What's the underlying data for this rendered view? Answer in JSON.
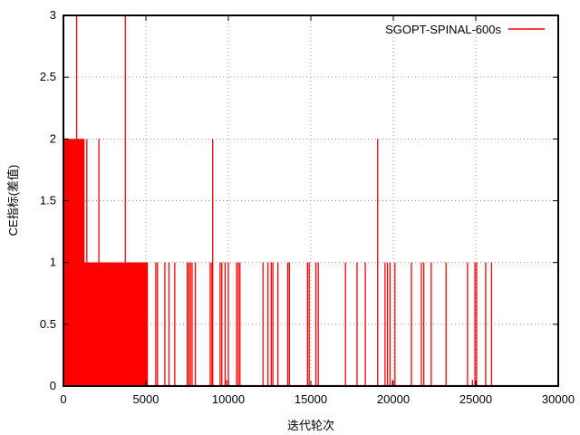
{
  "chart_data": {
    "type": "line",
    "title": "",
    "xlabel": "迭代轮次",
    "ylabel": "CE指标(差值)",
    "xlim": [
      0,
      30000
    ],
    "ylim": [
      0,
      3
    ],
    "xticks": [
      "0",
      "5000",
      "10000",
      "15000",
      "20000",
      "25000",
      "30000"
    ],
    "yticks": [
      "0",
      "0.5",
      "1",
      "1.5",
      "2",
      "2.5",
      "3"
    ],
    "grid": true,
    "legend_position": "top-right",
    "series": [
      {
        "name": "SGOPT-SPINAL-600s",
        "color": "#ff0000",
        "dense_ranges": [
          {
            "x_start": 0,
            "x_end": 650,
            "value": 2
          },
          {
            "x_start": 650,
            "x_end": 1250,
            "value": 2
          },
          {
            "x_start": 1250,
            "x_end": 2600,
            "value": 1
          },
          {
            "x_start": 2600,
            "x_end": 5100,
            "value": 1
          }
        ],
        "spikes": [
          {
            "x": 800,
            "y": 3
          },
          {
            "x": 3750,
            "y": 3
          },
          {
            "x": 980,
            "y": 2
          },
          {
            "x": 1100,
            "y": 2
          },
          {
            "x": 1420,
            "y": 2
          },
          {
            "x": 2150,
            "y": 2
          },
          {
            "x": 9050,
            "y": 2
          },
          {
            "x": 19050,
            "y": 2
          },
          {
            "x": 5600,
            "y": 1
          },
          {
            "x": 5700,
            "y": 1
          },
          {
            "x": 6150,
            "y": 1
          },
          {
            "x": 6400,
            "y": 1
          },
          {
            "x": 6750,
            "y": 1
          },
          {
            "x": 7500,
            "y": 1
          },
          {
            "x": 7600,
            "y": 1
          },
          {
            "x": 7700,
            "y": 1
          },
          {
            "x": 7800,
            "y": 1
          },
          {
            "x": 8000,
            "y": 1
          },
          {
            "x": 8900,
            "y": 1
          },
          {
            "x": 9000,
            "y": 1
          },
          {
            "x": 9500,
            "y": 1
          },
          {
            "x": 9600,
            "y": 1
          },
          {
            "x": 9800,
            "y": 1
          },
          {
            "x": 10000,
            "y": 1
          },
          {
            "x": 10500,
            "y": 1
          },
          {
            "x": 10600,
            "y": 1
          },
          {
            "x": 10700,
            "y": 1
          },
          {
            "x": 12100,
            "y": 1
          },
          {
            "x": 12400,
            "y": 1
          },
          {
            "x": 12600,
            "y": 1
          },
          {
            "x": 12700,
            "y": 1
          },
          {
            "x": 13000,
            "y": 1
          },
          {
            "x": 13600,
            "y": 1
          },
          {
            "x": 13700,
            "y": 1
          },
          {
            "x": 14800,
            "y": 1
          },
          {
            "x": 14900,
            "y": 1
          },
          {
            "x": 15300,
            "y": 1
          },
          {
            "x": 15450,
            "y": 1
          },
          {
            "x": 17100,
            "y": 1
          },
          {
            "x": 17800,
            "y": 1
          },
          {
            "x": 18300,
            "y": 1
          },
          {
            "x": 19500,
            "y": 1
          },
          {
            "x": 19650,
            "y": 1
          },
          {
            "x": 19800,
            "y": 1
          },
          {
            "x": 20100,
            "y": 1
          },
          {
            "x": 21100,
            "y": 1
          },
          {
            "x": 21700,
            "y": 1
          },
          {
            "x": 21850,
            "y": 1
          },
          {
            "x": 22300,
            "y": 1
          },
          {
            "x": 23200,
            "y": 1
          },
          {
            "x": 24500,
            "y": 1
          },
          {
            "x": 24950,
            "y": 1
          },
          {
            "x": 25050,
            "y": 1
          },
          {
            "x": 25600,
            "y": 1
          },
          {
            "x": 25950,
            "y": 1
          },
          {
            "x": 9880,
            "y": 0.05
          },
          {
            "x": 19950,
            "y": 0.05
          },
          {
            "x": 24800,
            "y": 0.05
          }
        ]
      }
    ]
  }
}
